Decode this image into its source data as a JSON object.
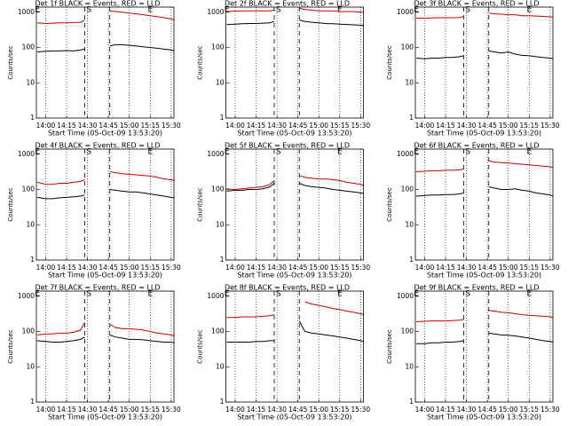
{
  "chart_data": [
    {
      "type": "line",
      "title": "Det 1f BLACK = Events, RED = LLD",
      "xlabel": "Start Time (05-Oct-09 13:53:20)",
      "ylabel": "Counts/sec",
      "log_y": true,
      "grid": true,
      "xlim": [
        "13:53:20",
        "15:32"
      ],
      "xticks": [
        "14:00",
        "14:15",
        "14:30",
        "14:45",
        "15:00",
        "15:15",
        "15:30"
      ],
      "ylim": [
        1,
        1400
      ],
      "yticks": [
        1,
        10,
        100,
        1000
      ],
      "x": [
        "13:54",
        "14:00",
        "14:05",
        "14:10",
        "14:15",
        "14:20",
        "14:25",
        "14:28",
        "14:35",
        "14:40",
        "14:46",
        "14:50",
        "14:55",
        "15:00",
        "15:05",
        "15:10",
        "15:15",
        "15:20",
        "15:25",
        "15:30",
        "15:32"
      ],
      "series": [
        {
          "color": "#000000",
          "values": [
            75,
            78,
            80,
            80,
            82,
            80,
            85,
            90,
            null,
            null,
            110,
            120,
            120,
            115,
            110,
            105,
            100,
            95,
            90,
            85,
            80
          ]
        },
        {
          "color": "#cc0000",
          "values": [
            500,
            480,
            490,
            500,
            500,
            510,
            520,
            600,
            null,
            null,
            1100,
            1050,
            1000,
            950,
            900,
            850,
            800,
            750,
            700,
            650,
            600
          ]
        }
      ],
      "dashed_lines": [
        "14:28",
        "14:46"
      ],
      "markers": [
        {
          "label": "E",
          "x": "13:54"
        },
        {
          "label": "S",
          "x": "14:31"
        },
        {
          "label": "E",
          "x": "15:15"
        }
      ]
    },
    {
      "type": "line",
      "title": "Det 2f BLACK = Events, RED = LLD",
      "xlabel": "Start Time (05-Oct-09 13:53:20)",
      "ylabel": "Counts/sec",
      "log_y": true,
      "grid": true,
      "xlim": [
        "13:53:20",
        "15:32"
      ],
      "xticks": [
        "14:00",
        "14:15",
        "14:30",
        "14:45",
        "15:00",
        "15:15",
        "15:30"
      ],
      "ylim": [
        1,
        1400
      ],
      "yticks": [
        1,
        10,
        100,
        1000
      ],
      "x": [
        "13:54",
        "14:00",
        "14:05",
        "14:10",
        "14:15",
        "14:20",
        "14:25",
        "14:28",
        "14:35",
        "14:40",
        "14:46",
        "14:50",
        "14:55",
        "15:00",
        "15:05",
        "15:10",
        "15:15",
        "15:20",
        "15:25",
        "15:30",
        "15:32"
      ],
      "series": [
        {
          "color": "#000000",
          "values": [
            450,
            460,
            470,
            480,
            480,
            490,
            500,
            550,
            null,
            null,
            600,
            550,
            520,
            500,
            480,
            470,
            460,
            450,
            440,
            430,
            420
          ]
        },
        {
          "color": "#cc0000",
          "values": [
            1050,
            1080,
            1100,
            1100,
            1100,
            1100,
            1100,
            1150,
            null,
            null,
            1300,
            1200,
            1150,
            1100,
            1100,
            1100,
            1050,
            1050,
            1050,
            1000,
            1000
          ]
        }
      ],
      "dashed_lines": [
        "14:28",
        "14:46"
      ],
      "markers": [
        {
          "label": "E",
          "x": "13:54"
        },
        {
          "label": "S",
          "x": "14:31"
        },
        {
          "label": "E",
          "x": "15:15"
        }
      ]
    },
    {
      "type": "line",
      "title": "Det 3f BLACK = Events, RED = LLD",
      "xlabel": "Start Time (05-Oct-09 13:53:20)",
      "ylabel": "Counts/sec",
      "log_y": true,
      "grid": true,
      "xlim": [
        "13:53:20",
        "15:32"
      ],
      "xticks": [
        "14:00",
        "14:15",
        "14:30",
        "14:45",
        "15:00",
        "15:15",
        "15:30"
      ],
      "ylim": [
        1,
        1400
      ],
      "yticks": [
        1,
        10,
        100,
        1000
      ],
      "x": [
        "13:54",
        "14:00",
        "14:05",
        "14:10",
        "14:15",
        "14:20",
        "14:25",
        "14:28",
        "14:35",
        "14:40",
        "14:46",
        "14:50",
        "14:55",
        "15:00",
        "15:05",
        "15:10",
        "15:15",
        "15:20",
        "15:25",
        "15:30",
        "15:32"
      ],
      "series": [
        {
          "color": "#000000",
          "values": [
            50,
            48,
            50,
            50,
            52,
            52,
            55,
            58,
            null,
            null,
            80,
            75,
            70,
            75,
            65,
            60,
            58,
            55,
            52,
            50,
            48
          ]
        },
        {
          "color": "#cc0000",
          "values": [
            680,
            680,
            690,
            700,
            700,
            700,
            710,
            750,
            null,
            null,
            950,
            900,
            880,
            850,
            850,
            800,
            800,
            780,
            760,
            740,
            720
          ]
        }
      ],
      "dashed_lines": [
        "14:28",
        "14:46"
      ],
      "markers": [
        {
          "label": "E",
          "x": "13:54"
        },
        {
          "label": "S",
          "x": "14:31"
        },
        {
          "label": "E",
          "x": "15:15"
        }
      ]
    },
    {
      "type": "line",
      "title": "Det 4f BLACK = Events, RED = LLD",
      "xlabel": "Start Time (05-Oct-09 13:53:20)",
      "ylabel": "Counts/sec",
      "log_y": true,
      "grid": true,
      "xlim": [
        "13:53:20",
        "15:32"
      ],
      "xticks": [
        "14:00",
        "14:15",
        "14:30",
        "14:45",
        "15:00",
        "15:15",
        "15:30"
      ],
      "ylim": [
        1,
        1400
      ],
      "yticks": [
        1,
        10,
        100,
        1000
      ],
      "x": [
        "13:54",
        "14:00",
        "14:05",
        "14:10",
        "14:15",
        "14:20",
        "14:25",
        "14:28",
        "14:35",
        "14:40",
        "14:46",
        "14:50",
        "14:55",
        "15:00",
        "15:05",
        "15:10",
        "15:15",
        "15:20",
        "15:25",
        "15:30",
        "15:32"
      ],
      "series": [
        {
          "color": "#000000",
          "values": [
            60,
            55,
            55,
            58,
            60,
            62,
            65,
            70,
            null,
            null,
            100,
            95,
            90,
            85,
            85,
            80,
            75,
            70,
            65,
            60,
            58
          ]
        },
        {
          "color": "#cc0000",
          "values": [
            160,
            140,
            140,
            150,
            150,
            160,
            170,
            190,
            null,
            null,
            320,
            300,
            280,
            270,
            260,
            250,
            240,
            220,
            200,
            190,
            180
          ]
        }
      ],
      "dashed_lines": [
        "14:28",
        "14:46"
      ],
      "markers": [
        {
          "label": "E",
          "x": "13:54"
        },
        {
          "label": "S",
          "x": "14:31"
        },
        {
          "label": "E",
          "x": "15:15"
        }
      ]
    },
    {
      "type": "line",
      "title": "Det 5f BLACK = Events, RED = LLD",
      "xlabel": "Start Time (05-Oct-09 13:53:20)",
      "ylabel": "Counts/sec",
      "log_y": true,
      "grid": true,
      "xlim": [
        "13:53:20",
        "15:32"
      ],
      "xticks": [
        "14:00",
        "14:15",
        "14:30",
        "14:45",
        "15:00",
        "15:15",
        "15:30"
      ],
      "ylim": [
        1,
        1400
      ],
      "yticks": [
        1,
        10,
        100,
        1000
      ],
      "x": [
        "13:54",
        "14:00",
        "14:05",
        "14:10",
        "14:15",
        "14:20",
        "14:25",
        "14:28",
        "14:35",
        "14:40",
        "14:46",
        "14:50",
        "14:55",
        "15:00",
        "15:05",
        "15:10",
        "15:15",
        "15:20",
        "15:25",
        "15:30",
        "15:32"
      ],
      "series": [
        {
          "color": "#000000",
          "values": [
            90,
            95,
            95,
            100,
            100,
            105,
            120,
            150,
            null,
            null,
            150,
            130,
            120,
            115,
            110,
            100,
            95,
            90,
            85,
            80,
            78
          ]
        },
        {
          "color": "#cc0000",
          "values": [
            105,
            100,
            105,
            110,
            115,
            120,
            140,
            180,
            null,
            null,
            250,
            220,
            210,
            200,
            200,
            190,
            180,
            160,
            150,
            140,
            130
          ]
        }
      ],
      "dashed_lines": [
        "14:28",
        "14:46"
      ],
      "markers": [
        {
          "label": "E",
          "x": "13:54"
        },
        {
          "label": "S",
          "x": "14:31"
        },
        {
          "label": "E",
          "x": "15:15"
        }
      ]
    },
    {
      "type": "line",
      "title": "Det 6f BLACK = Events, RED = LLD",
      "xlabel": "Start Time (05-Oct-09 13:53:20)",
      "ylabel": "Counts/sec",
      "log_y": true,
      "grid": true,
      "xlim": [
        "13:53:20",
        "15:32"
      ],
      "xticks": [
        "14:00",
        "14:15",
        "14:30",
        "14:45",
        "15:00",
        "15:15",
        "15:30"
      ],
      "ylim": [
        1,
        1400
      ],
      "yticks": [
        1,
        10,
        100,
        1000
      ],
      "x": [
        "13:54",
        "14:00",
        "14:05",
        "14:10",
        "14:15",
        "14:20",
        "14:25",
        "14:28",
        "14:35",
        "14:40",
        "14:46",
        "14:50",
        "14:55",
        "15:00",
        "15:05",
        "15:10",
        "15:15",
        "15:20",
        "15:25",
        "15:30",
        "15:32"
      ],
      "series": [
        {
          "color": "#000000",
          "values": [
            65,
            68,
            70,
            70,
            72,
            72,
            75,
            80,
            null,
            null,
            120,
            110,
            100,
            100,
            105,
            95,
            90,
            80,
            75,
            70,
            65
          ]
        },
        {
          "color": "#cc0000",
          "values": [
            320,
            330,
            340,
            340,
            350,
            350,
            360,
            380,
            null,
            null,
            650,
            600,
            580,
            560,
            540,
            520,
            500,
            480,
            460,
            440,
            420
          ]
        }
      ],
      "dashed_lines": [
        "14:28",
        "14:46"
      ],
      "markers": [
        {
          "label": "E",
          "x": "13:54"
        },
        {
          "label": "S",
          "x": "14:31"
        },
        {
          "label": "E",
          "x": "15:15"
        }
      ]
    },
    {
      "type": "line",
      "title": "Det 7f BLACK = Events, RED = LLD",
      "xlabel": "Start Time (05-Oct-09 13:53:20)",
      "ylabel": "Counts/sec",
      "log_y": true,
      "grid": true,
      "xlim": [
        "13:53:20",
        "15:32"
      ],
      "xticks": [
        "14:00",
        "14:15",
        "14:30",
        "14:45",
        "15:00",
        "15:15",
        "15:30"
      ],
      "ylim": [
        1,
        1400
      ],
      "yticks": [
        1,
        10,
        100,
        1000
      ],
      "x": [
        "13:54",
        "14:00",
        "14:05",
        "14:10",
        "14:15",
        "14:20",
        "14:25",
        "14:28",
        "14:35",
        "14:40",
        "14:46",
        "14:50",
        "14:55",
        "15:00",
        "15:05",
        "15:10",
        "15:15",
        "15:20",
        "15:25",
        "15:30",
        "15:32"
      ],
      "series": [
        {
          "color": "#000000",
          "values": [
            55,
            52,
            50,
            50,
            52,
            55,
            60,
            70,
            null,
            null,
            80,
            70,
            65,
            60,
            60,
            58,
            55,
            52,
            50,
            50,
            48
          ]
        },
        {
          "color": "#cc0000",
          "values": [
            80,
            85,
            85,
            90,
            90,
            95,
            110,
            180,
            null,
            null,
            160,
            130,
            120,
            120,
            115,
            110,
            100,
            90,
            85,
            80,
            75
          ]
        }
      ],
      "dashed_lines": [
        "14:28",
        "14:46"
      ],
      "markers": [
        {
          "label": "E",
          "x": "13:54"
        },
        {
          "label": "S",
          "x": "14:31"
        },
        {
          "label": "E",
          "x": "15:15"
        }
      ]
    },
    {
      "type": "line",
      "title": "Det 8f BLACK = Events, RED = LLD",
      "xlabel": "Start Time (05-Oct-09 13:53:20)",
      "ylabel": "Counts/sec",
      "log_y": true,
      "grid": true,
      "xlim": [
        "13:53:20",
        "15:32"
      ],
      "xticks": [
        "14:00",
        "14:15",
        "14:30",
        "14:45",
        "15:00",
        "15:15",
        "15:30"
      ],
      "ylim": [
        1,
        1400
      ],
      "yticks": [
        1,
        10,
        100,
        1000
      ],
      "x": [
        "13:54",
        "14:00",
        "14:05",
        "14:10",
        "14:15",
        "14:20",
        "14:25",
        "14:28",
        "14:35",
        "14:40",
        "14:46",
        "14:50",
        "14:55",
        "15:00",
        "15:05",
        "15:10",
        "15:15",
        "15:20",
        "15:25",
        "15:30",
        "15:32"
      ],
      "series": [
        {
          "color": "#000000",
          "values": [
            50,
            50,
            50,
            50,
            52,
            52,
            55,
            55,
            null,
            null,
            200,
            100,
            90,
            85,
            80,
            75,
            70,
            65,
            60,
            55,
            52
          ]
        },
        {
          "color": "#cc0000",
          "values": [
            250,
            250,
            260,
            260,
            260,
            270,
            280,
            300,
            null,
            null,
            null,
            700,
            600,
            550,
            500,
            450,
            420,
            380,
            350,
            320,
            300
          ]
        }
      ],
      "dashed_lines": [
        "14:28",
        "14:46"
      ],
      "markers": [
        {
          "label": "E",
          "x": "13:54"
        },
        {
          "label": "S",
          "x": "14:31"
        },
        {
          "label": "E",
          "x": "15:15"
        }
      ]
    },
    {
      "type": "line",
      "title": "Det 9f BLACK = Events, RED = LLD",
      "xlabel": "Start Time (05-Oct-09 13:53:20)",
      "ylabel": "Counts/sec",
      "log_y": true,
      "grid": true,
      "xlim": [
        "13:53:20",
        "15:32"
      ],
      "xticks": [
        "14:00",
        "14:15",
        "14:30",
        "14:45",
        "15:00",
        "15:15",
        "15:30"
      ],
      "ylim": [
        1,
        1400
      ],
      "yticks": [
        1,
        10,
        100,
        1000
      ],
      "x": [
        "13:54",
        "14:00",
        "14:05",
        "14:10",
        "14:15",
        "14:20",
        "14:25",
        "14:28",
        "14:35",
        "14:40",
        "14:46",
        "14:50",
        "14:55",
        "15:00",
        "15:05",
        "15:10",
        "15:15",
        "15:20",
        "15:25",
        "15:30",
        "15:32"
      ],
      "series": [
        {
          "color": "#000000",
          "values": [
            45,
            45,
            48,
            48,
            50,
            50,
            52,
            55,
            null,
            null,
            90,
            85,
            80,
            78,
            75,
            70,
            65,
            60,
            55,
            52,
            50
          ]
        },
        {
          "color": "#cc0000",
          "values": [
            190,
            195,
            200,
            200,
            200,
            205,
            210,
            220,
            null,
            null,
            400,
            380,
            350,
            340,
            320,
            300,
            290,
            280,
            270,
            260,
            250
          ]
        }
      ],
      "dashed_lines": [
        "14:28",
        "14:46"
      ],
      "markers": [
        {
          "label": "E",
          "x": "13:54"
        },
        {
          "label": "S",
          "x": "14:31"
        },
        {
          "label": "E",
          "x": "15:15"
        }
      ]
    }
  ]
}
